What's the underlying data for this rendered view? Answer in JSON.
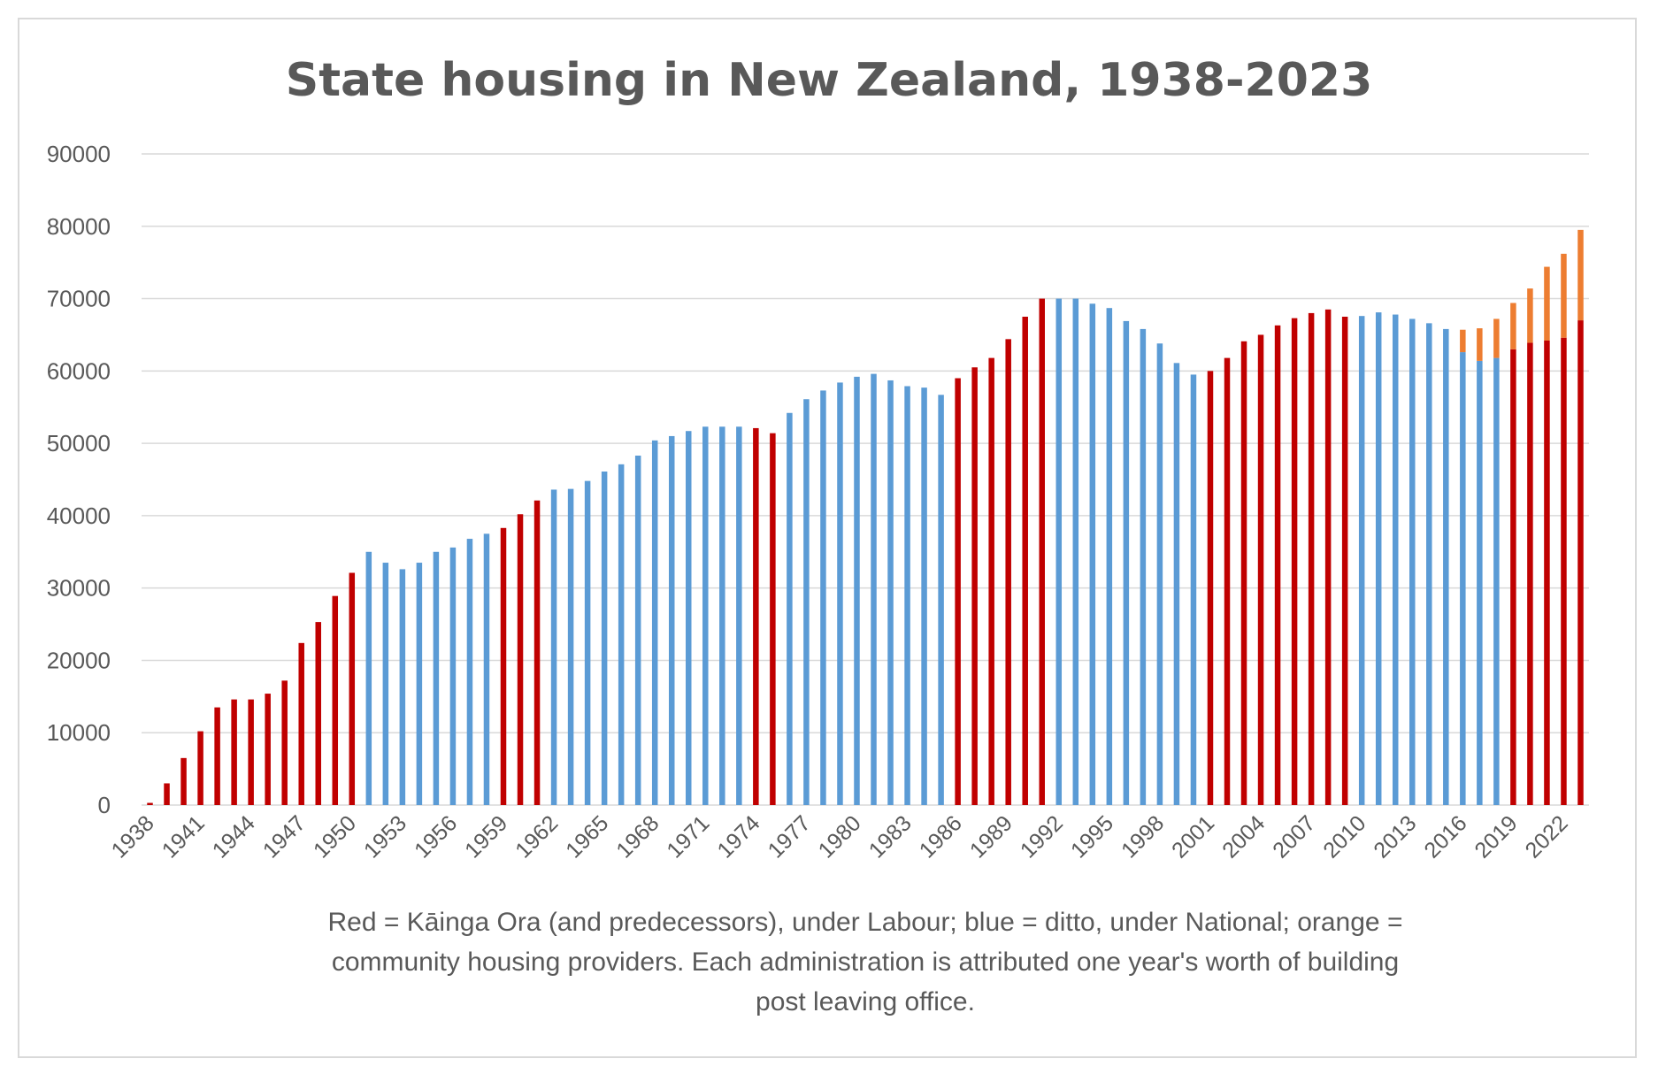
{
  "chart_data": {
    "type": "bar",
    "stacked": true,
    "title": "State housing in New Zealand, 1938-2023",
    "xlabel": "",
    "ylabel": "",
    "ylim": [
      0,
      90000
    ],
    "yticks": [
      "0",
      "10000",
      "20000",
      "30000",
      "40000",
      "50000",
      "60000",
      "70000",
      "80000",
      "90000"
    ],
    "xtick_labels": [
      "1938",
      "1941",
      "1944",
      "1947",
      "1950",
      "1953",
      "1956",
      "1959",
      "1962",
      "1965",
      "1968",
      "1971",
      "1974",
      "1977",
      "1980",
      "1983",
      "1986",
      "1989",
      "1992",
      "1995",
      "1998",
      "2001",
      "2004",
      "2007",
      "2010",
      "2013",
      "2016",
      "2019",
      "2022"
    ],
    "grid": true,
    "legend": "none",
    "colors": {
      "labour": "#c00000",
      "national": "#5b9bd5",
      "community": "#ed7d31"
    },
    "categories": [
      "1938",
      "1939",
      "1940",
      "1941",
      "1942",
      "1943",
      "1944",
      "1945",
      "1946",
      "1947",
      "1948",
      "1949",
      "1950",
      "1951",
      "1952",
      "1953",
      "1954",
      "1955",
      "1956",
      "1957",
      "1958",
      "1959",
      "1960",
      "1961",
      "1962",
      "1963",
      "1964",
      "1965",
      "1966",
      "1967",
      "1968",
      "1969",
      "1970",
      "1971",
      "1972",
      "1973",
      "1974",
      "1975",
      "1976",
      "1977",
      "1978",
      "1979",
      "1980",
      "1981",
      "1982",
      "1983",
      "1984",
      "1985",
      "1986",
      "1987",
      "1988",
      "1989",
      "1990",
      "1991",
      "1992",
      "1993",
      "1994",
      "1995",
      "1996",
      "1997",
      "1998",
      "1999",
      "2000",
      "2001",
      "2002",
      "2003",
      "2004",
      "2005",
      "2006",
      "2007",
      "2008",
      "2009",
      "2010",
      "2011",
      "2012",
      "2013",
      "2014",
      "2015",
      "2016",
      "2017",
      "2018",
      "2019",
      "2020",
      "2021",
      "2022",
      "2023"
    ],
    "values": [
      300,
      3000,
      6500,
      10200,
      13500,
      14600,
      14600,
      15400,
      17200,
      22400,
      25300,
      28900,
      32100,
      35000,
      33500,
      32600,
      33500,
      35000,
      35600,
      36800,
      37500,
      38300,
      40200,
      42100,
      43600,
      43700,
      44800,
      46100,
      47100,
      48300,
      50400,
      51000,
      51700,
      52300,
      52300,
      52300,
      52100,
      51400,
      54200,
      56100,
      57300,
      58400,
      59200,
      59600,
      58700,
      57900,
      57700,
      56700,
      59000,
      60500,
      61800,
      64400,
      67500,
      70000,
      70000,
      70000,
      69300,
      68700,
      66900,
      65800,
      63800,
      61100,
      59500,
      60000,
      61800,
      64100,
      65000,
      66300,
      67300,
      68000,
      68500,
      67500,
      67600,
      68100,
      67800,
      67200,
      66600,
      65800,
      62600,
      61400,
      61800,
      63000,
      63900,
      64200,
      64600,
      67000
    ],
    "community": [
      0,
      0,
      0,
      0,
      0,
      0,
      0,
      0,
      0,
      0,
      0,
      0,
      0,
      0,
      0,
      0,
      0,
      0,
      0,
      0,
      0,
      0,
      0,
      0,
      0,
      0,
      0,
      0,
      0,
      0,
      0,
      0,
      0,
      0,
      0,
      0,
      0,
      0,
      0,
      0,
      0,
      0,
      0,
      0,
      0,
      0,
      0,
      0,
      0,
      0,
      0,
      0,
      0,
      0,
      0,
      0,
      0,
      0,
      0,
      0,
      0,
      0,
      0,
      0,
      0,
      0,
      0,
      0,
      0,
      0,
      0,
      0,
      0,
      0,
      0,
      0,
      0,
      0,
      3100,
      4500,
      5400,
      6400,
      7500,
      10200,
      11600,
      12500
    ],
    "party": [
      "R",
      "R",
      "R",
      "R",
      "R",
      "R",
      "R",
      "R",
      "R",
      "R",
      "R",
      "R",
      "R",
      "B",
      "B",
      "B",
      "B",
      "B",
      "B",
      "B",
      "B",
      "R",
      "R",
      "R",
      "B",
      "B",
      "B",
      "B",
      "B",
      "B",
      "B",
      "B",
      "B",
      "B",
      "B",
      "B",
      "R",
      "R",
      "B",
      "B",
      "B",
      "B",
      "B",
      "B",
      "B",
      "B",
      "B",
      "B",
      "R",
      "R",
      "R",
      "R",
      "R",
      "R",
      "B",
      "B",
      "B",
      "B",
      "B",
      "B",
      "B",
      "B",
      "B",
      "R",
      "R",
      "R",
      "R",
      "R",
      "R",
      "R",
      "R",
      "R",
      "B",
      "B",
      "B",
      "B",
      "B",
      "B",
      "B",
      "B",
      "B",
      "R",
      "R",
      "R",
      "R",
      "R"
    ],
    "caption": [
      "Red = Kāinga Ora (and predecessors), under Labour; blue = ditto, under National; orange =",
      "community housing providers. Each administration is attributed one year's worth of building",
      "post leaving office."
    ]
  }
}
